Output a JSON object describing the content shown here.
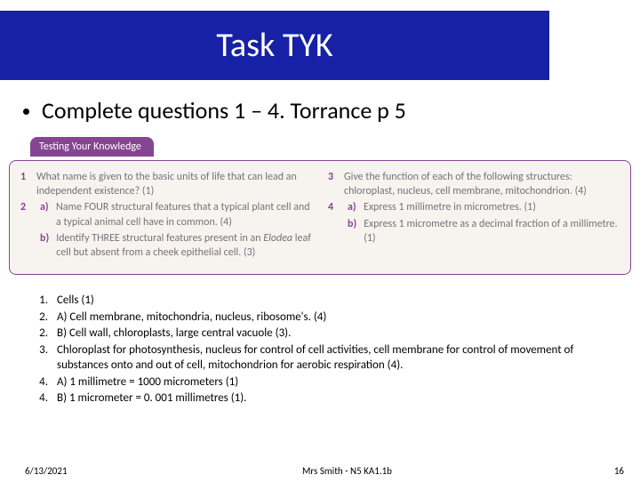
{
  "title": "Task TYK",
  "instruction": "Complete questions 1 – 4. Torrance p 5",
  "textbook": {
    "tab_label": "Testing Your Knowledge",
    "panel_bg": "#f7f4f0",
    "panel_border": "#854590",
    "tab_bg": "#854590",
    "text_color": "#7a6f78",
    "q1_num": "1",
    "q1_text": "What name is given to the basic units of life that can lead an independent existence? (1)",
    "q2_num": "2",
    "q2a_sub": "a)",
    "q2a_text": "Name FOUR structural features that a typical plant cell and a typical animal cell have in common. (4)",
    "q2b_sub": "b)",
    "q2b_text_1": "Identify THREE structural features present in an ",
    "q2b_italic": "Elodea",
    "q2b_text_2": " leaf cell but absent from a cheek epithelial cell. (3)",
    "q3_num": "3",
    "q3_text": "Give the function of each of the following structures: chloroplast, nucleus, cell membrane, mitochondrion. (4)",
    "q4_num": "4",
    "q4a_sub": "a)",
    "q4a_text": "Express 1 millimetre in micrometres. (1)",
    "q4b_sub": "b)",
    "q4b_text": "Express 1 micrometre as a decimal fraction of a millimetre. (1)"
  },
  "answers": {
    "a1_num": "1.",
    "a1": "Cells (1)",
    "a2_num": "2.",
    "a2": "A) Cell membrane, mitochondria, nucleus, ribosome's. (4)",
    "a2b_num": "2.",
    "a2b": "B) Cell wall, chloroplasts, large central vacuole (3).",
    "a3_num": "3.",
    "a3": "Chloroplast for photosynthesis, nucleus for control of cell activities, cell membrane for control of movement of substances onto and out of cell, mitochondrion for aerobic respiration (4).",
    "a4_num": "4.",
    "a4": "A) 1 millimetre = 1000 micrometers (1)",
    "a4b_num": "4.",
    "a4b": "B) 1 micrometer = 0. 001 millimetres (1)."
  },
  "footer": {
    "date": "6/13/2021",
    "center": "Mrs Smith - N5 KA1.1b",
    "page": "16"
  },
  "colors": {
    "title_bg": "#1621a5",
    "title_fg": "#ffffff",
    "body_bg": "#ffffff",
    "text": "#000000"
  }
}
